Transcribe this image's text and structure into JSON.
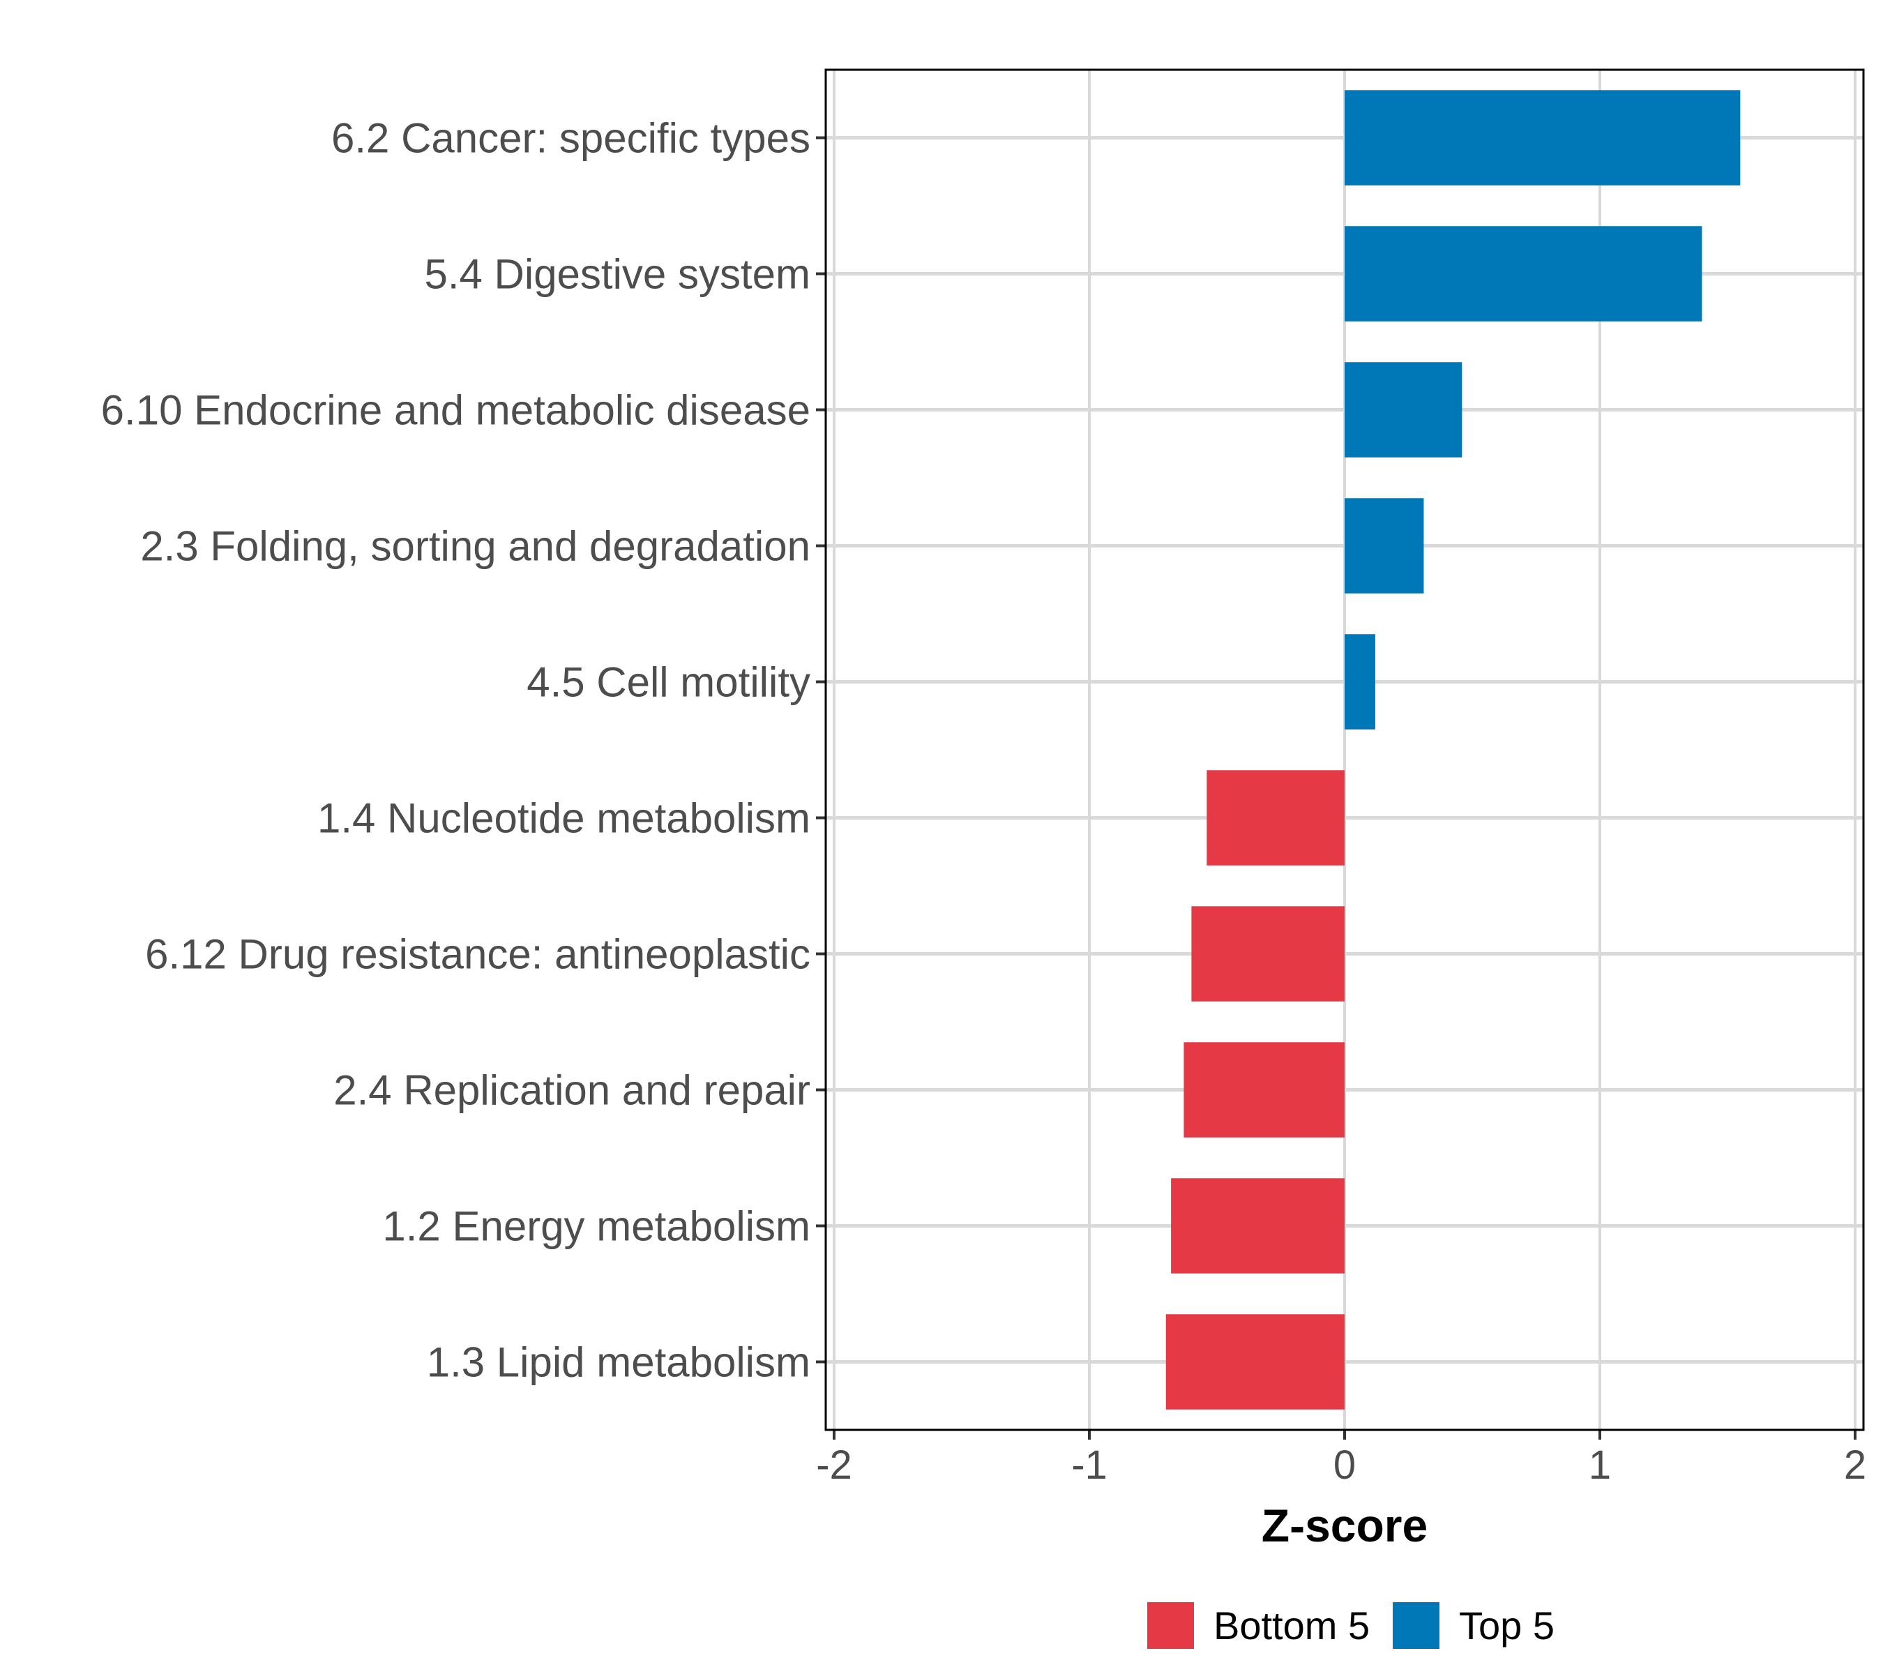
{
  "chart_data": {
    "type": "bar",
    "orientation": "horizontal",
    "title": "",
    "xlabel": "Z-score",
    "ylabel": "",
    "xlim": [
      -2,
      2
    ],
    "xticks": [
      -2,
      -1,
      0,
      1,
      2
    ],
    "xtick_labels": [
      "-2",
      "-1",
      "0",
      "1",
      "2"
    ],
    "grid": true,
    "legend_position": "bottom",
    "categories": [
      "6.2 Cancer: specific types",
      "5.4 Digestive system",
      "6.10 Endocrine and metabolic disease",
      "2.3 Folding, sorting and degradation",
      "4.5 Cell motility",
      "1.4 Nucleotide metabolism",
      "6.12 Drug resistance: antineoplastic",
      "2.4 Replication and repair",
      "1.2 Energy metabolism",
      "1.3 Lipid metabolism"
    ],
    "values": [
      1.55,
      1.4,
      0.46,
      0.31,
      0.12,
      -0.54,
      -0.6,
      -0.63,
      -0.68,
      -0.7
    ],
    "groups": [
      "Top 5",
      "Top 5",
      "Top 5",
      "Top 5",
      "Top 5",
      "Bottom 5",
      "Bottom 5",
      "Bottom 5",
      "Bottom 5",
      "Bottom 5"
    ],
    "legend": [
      {
        "name": "Bottom 5",
        "color": "#E63946"
      },
      {
        "name": "Top 5",
        "color": "#0077B6"
      }
    ]
  }
}
